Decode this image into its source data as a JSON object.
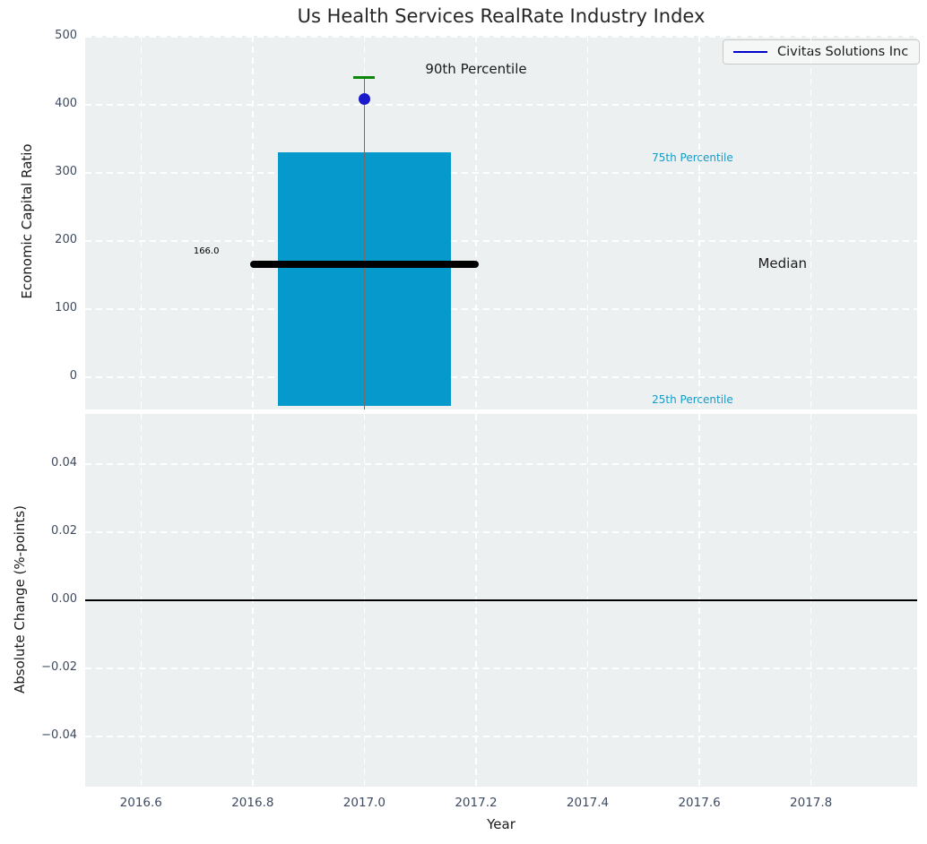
{
  "title": "Us Health Services RealRate Industry Index",
  "legend": {
    "label": "Civitas Solutions Inc",
    "line_color": "#0000cc"
  },
  "colors": {
    "axes_bg": "#ecf0f1",
    "grid": "#ffffff",
    "tick_label": "#3e4a61",
    "bar": "#0699cc",
    "median_line": "#000000",
    "whisker": "#6e6e6e",
    "cap": "#0a870a",
    "point": "#1a1acc",
    "zero_line": "#000000",
    "percentile_label": "#189ac6",
    "annotation_text": "#1a1a1a"
  },
  "chart_data": {
    "type": "box",
    "title": "Us Health Services RealRate Industry Index",
    "xlabel": "Year",
    "legend_entries": [
      "Civitas Solutions Inc"
    ],
    "legend_position": "upper right",
    "grid": true,
    "x": {
      "lim": [
        2016.5,
        2017.99
      ],
      "ticks": [
        2016.6,
        2016.8,
        2017.0,
        2017.2,
        2017.4,
        2017.6,
        2017.8
      ],
      "tick_labels": [
        "2016.6",
        "2016.8",
        "2017.0",
        "2017.2",
        "2017.4",
        "2017.6",
        "2017.8"
      ]
    },
    "panels": [
      {
        "ylabel": "Economic Capital Ratio",
        "ylim": [
          -47,
          501
        ],
        "yticks": [
          0,
          100,
          200,
          300,
          400,
          500
        ],
        "ytick_labels": [
          "0",
          "100",
          "200",
          "300",
          "400",
          "500"
        ],
        "box": {
          "x": 2017.0,
          "box_width": 0.31,
          "median_line_width": 0.41,
          "q25": -42,
          "q75": 330,
          "median": 166.0,
          "median_label": "166.0",
          "p90": 440
        },
        "series": [
          {
            "name": "Civitas Solutions Inc",
            "x": 2017.0,
            "y": 408,
            "marker": "circle"
          }
        ],
        "annotations": [
          {
            "text": "90th Percentile",
            "x": 2017.2,
            "y": 452,
            "color": "#1a1a1a",
            "size": 15,
            "anchor": "middle"
          },
          {
            "text": "75th Percentile",
            "x": 2017.515,
            "y": 322,
            "color": "#189ac6",
            "size": 12,
            "anchor": "start"
          },
          {
            "text": "Median",
            "x": 2017.705,
            "y": 167,
            "color": "#1a1a1a",
            "size": 15,
            "anchor": "start"
          },
          {
            "text": "25th Percentile",
            "x": 2017.515,
            "y": -33,
            "color": "#189ac6",
            "size": 12,
            "anchor": "start"
          },
          {
            "text": "166.0",
            "x": 2016.74,
            "y": 184,
            "color": "#000000",
            "size": 10,
            "anchor": "end"
          }
        ]
      },
      {
        "ylabel": "Absolute Change (%-points)",
        "ylim": [
          -0.0547,
          0.0547
        ],
        "yticks": [
          0.04,
          0.02,
          0.0,
          -0.02,
          -0.04
        ],
        "ytick_labels": [
          "0.04",
          "0.02",
          "0.00",
          "−0.02",
          "−0.04"
        ],
        "zero_line": 0.0
      }
    ]
  }
}
